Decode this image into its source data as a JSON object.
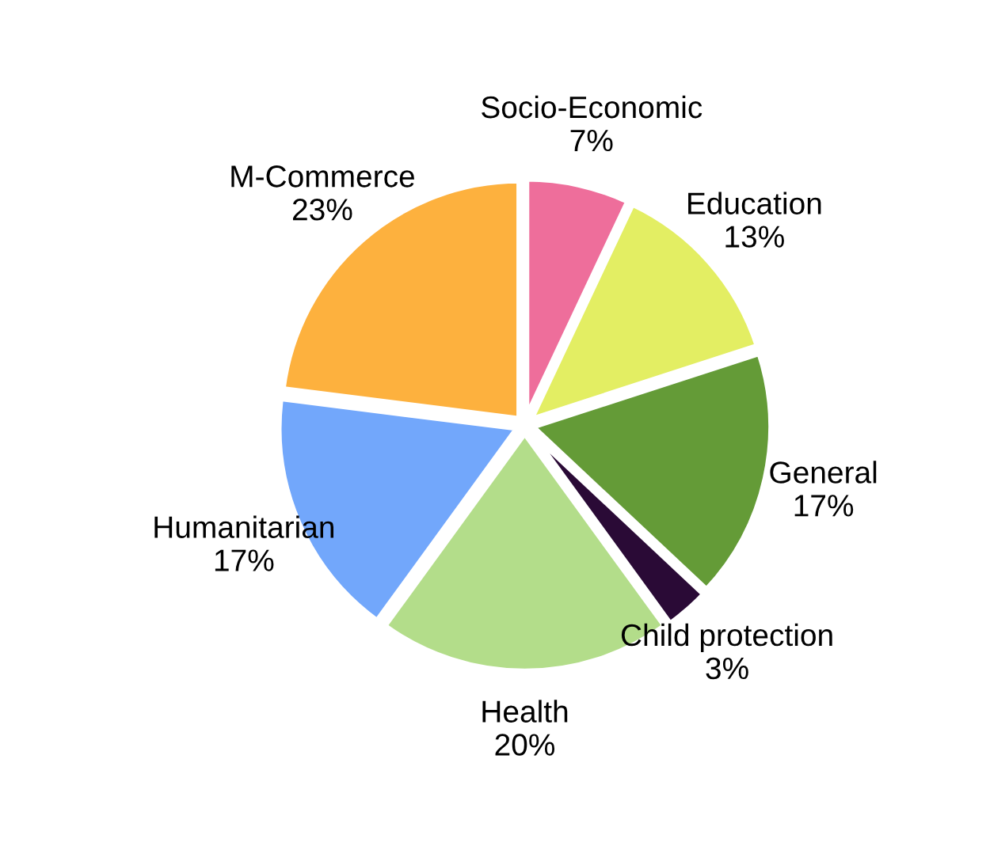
{
  "chart_data": {
    "type": "pie",
    "categories": [
      "Socio-Economic",
      "Education",
      "General",
      "Child protection",
      "Health",
      "Humanitarian",
      "M-Commerce"
    ],
    "values": [
      7,
      13,
      17,
      3,
      20,
      17,
      23
    ],
    "value_labels": [
      "7%",
      "13%",
      "17%",
      "3%",
      "20%",
      "17%",
      "23%"
    ],
    "colors": [
      "#ee6e9b",
      "#e3ee63",
      "#649b37",
      "#2a0a36",
      "#b3dd8a",
      "#72a7fb",
      "#fdb13e"
    ],
    "legend": false
  }
}
